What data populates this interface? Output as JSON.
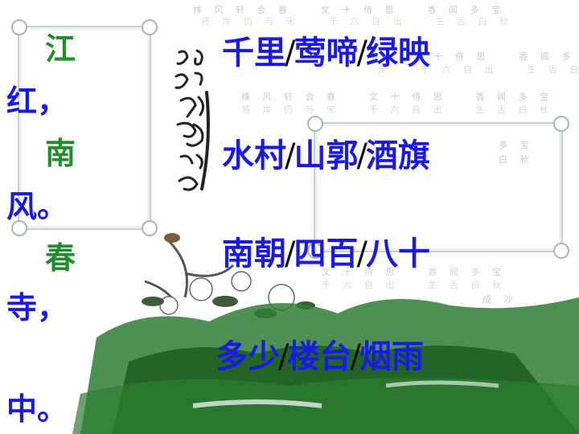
{
  "left_column": {
    "row1_green": "江",
    "row2_blue": "红，",
    "row3_green": "南",
    "row4_blue": "风。",
    "row5_green": "春",
    "row6_blue": "寺，",
    "row7_blue": "中。"
  },
  "poem_lines": [
    {
      "segments": [
        "千里",
        "莺啼",
        "绿映"
      ]
    },
    {
      "segments": [
        "水村",
        "山郭",
        "酒旗"
      ]
    },
    {
      "segments": [
        "南朝",
        "四百",
        "八十"
      ]
    },
    {
      "segments": [
        "多少",
        "楼台",
        "烟雨"
      ]
    }
  ],
  "separator": "/",
  "colors": {
    "segment_blue": "#1a1ae6",
    "left_green": "#1f8f2a",
    "ink_green": "#2e7d32"
  }
}
